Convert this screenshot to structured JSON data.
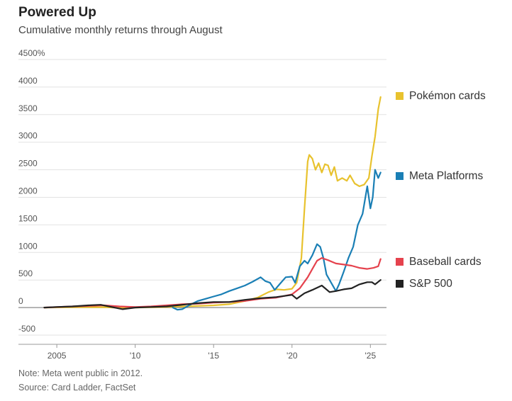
{
  "title": "Powered Up",
  "subtitle": "Cumulative monthly returns through August",
  "note": "Note: Meta went public in 2012.",
  "source": "Source: Card Ladder, FactSet",
  "chart_data": {
    "type": "line",
    "ylim": [
      -500,
      4500
    ],
    "xlim": [
      2004,
      2025.8
    ],
    "y_ticks": [
      {
        "value": 4500,
        "label": "4500%"
      },
      {
        "value": 4000,
        "label": "4000"
      },
      {
        "value": 3500,
        "label": "3500"
      },
      {
        "value": 3000,
        "label": "3000"
      },
      {
        "value": 2500,
        "label": "2500"
      },
      {
        "value": 2000,
        "label": "2000"
      },
      {
        "value": 1500,
        "label": "1500"
      },
      {
        "value": 1000,
        "label": "1000"
      },
      {
        "value": 500,
        "label": "500"
      },
      {
        "value": 0,
        "label": "0"
      },
      {
        "value": -500,
        "label": "-500"
      }
    ],
    "x_ticks": [
      {
        "value": 2005,
        "label": "2005"
      },
      {
        "value": 2010,
        "label": "'10"
      },
      {
        "value": 2015,
        "label": "'15"
      },
      {
        "value": 2020,
        "label": "'20"
      },
      {
        "value": 2025,
        "label": "'25"
      }
    ],
    "grid": true,
    "legend": "right",
    "series": [
      {
        "name": "Pokémon cards",
        "color": "#e8c22e",
        "points": [
          [
            2004.2,
            0
          ],
          [
            2006,
            5
          ],
          [
            2008,
            8
          ],
          [
            2009,
            -5
          ],
          [
            2010,
            0
          ],
          [
            2012,
            10
          ],
          [
            2013,
            20
          ],
          [
            2014,
            30
          ],
          [
            2015,
            40
          ],
          [
            2016,
            60
          ],
          [
            2017,
            120
          ],
          [
            2017.8,
            180
          ],
          [
            2018.5,
            280
          ],
          [
            2019,
            330
          ],
          [
            2019.5,
            320
          ],
          [
            2020,
            340
          ],
          [
            2020.3,
            450
          ],
          [
            2020.6,
            900
          ],
          [
            2020.8,
            1800
          ],
          [
            2021,
            2650
          ],
          [
            2021.1,
            2770
          ],
          [
            2021.3,
            2700
          ],
          [
            2021.5,
            2500
          ],
          [
            2021.7,
            2620
          ],
          [
            2021.9,
            2450
          ],
          [
            2022.1,
            2600
          ],
          [
            2022.3,
            2580
          ],
          [
            2022.5,
            2400
          ],
          [
            2022.7,
            2550
          ],
          [
            2022.9,
            2300
          ],
          [
            2023.2,
            2350
          ],
          [
            2023.5,
            2300
          ],
          [
            2023.7,
            2400
          ],
          [
            2024,
            2250
          ],
          [
            2024.3,
            2200
          ],
          [
            2024.6,
            2230
          ],
          [
            2024.9,
            2350
          ],
          [
            2025.1,
            2750
          ],
          [
            2025.3,
            3100
          ],
          [
            2025.5,
            3600
          ],
          [
            2025.65,
            3820
          ]
        ]
      },
      {
        "name": "Meta Platforms",
        "color": "#1a7fb5",
        "points": [
          [
            2012.4,
            0
          ],
          [
            2012.7,
            -40
          ],
          [
            2013,
            -30
          ],
          [
            2013.5,
            50
          ],
          [
            2014,
            120
          ],
          [
            2014.5,
            160
          ],
          [
            2015,
            200
          ],
          [
            2015.5,
            240
          ],
          [
            2016,
            300
          ],
          [
            2016.5,
            350
          ],
          [
            2017,
            400
          ],
          [
            2017.5,
            470
          ],
          [
            2018,
            550
          ],
          [
            2018.3,
            480
          ],
          [
            2018.6,
            450
          ],
          [
            2018.9,
            320
          ],
          [
            2019.2,
            420
          ],
          [
            2019.6,
            550
          ],
          [
            2020,
            560
          ],
          [
            2020.2,
            450
          ],
          [
            2020.5,
            750
          ],
          [
            2020.8,
            850
          ],
          [
            2021,
            800
          ],
          [
            2021.3,
            950
          ],
          [
            2021.6,
            1150
          ],
          [
            2021.8,
            1100
          ],
          [
            2022,
            900
          ],
          [
            2022.2,
            600
          ],
          [
            2022.5,
            450
          ],
          [
            2022.8,
            300
          ],
          [
            2023,
            420
          ],
          [
            2023.3,
            650
          ],
          [
            2023.6,
            900
          ],
          [
            2023.9,
            1100
          ],
          [
            2024.2,
            1500
          ],
          [
            2024.5,
            1700
          ],
          [
            2024.8,
            2200
          ],
          [
            2025,
            1800
          ],
          [
            2025.15,
            2000
          ],
          [
            2025.3,
            2500
          ],
          [
            2025.5,
            2350
          ],
          [
            2025.65,
            2450
          ]
        ]
      },
      {
        "name": "Baseball cards",
        "color": "#e5424d",
        "points": [
          [
            2004.2,
            0
          ],
          [
            2006,
            20
          ],
          [
            2007,
            30
          ],
          [
            2008,
            40
          ],
          [
            2009,
            20
          ],
          [
            2010,
            10
          ],
          [
            2011,
            20
          ],
          [
            2012,
            40
          ],
          [
            2013,
            60
          ],
          [
            2014,
            70
          ],
          [
            2015,
            90
          ],
          [
            2016,
            100
          ],
          [
            2017,
            120
          ],
          [
            2018,
            160
          ],
          [
            2019,
            180
          ],
          [
            2020,
            240
          ],
          [
            2020.5,
            350
          ],
          [
            2021,
            550
          ],
          [
            2021.3,
            700
          ],
          [
            2021.6,
            850
          ],
          [
            2021.9,
            900
          ],
          [
            2022.3,
            860
          ],
          [
            2022.8,
            800
          ],
          [
            2023.3,
            780
          ],
          [
            2023.8,
            760
          ],
          [
            2024.3,
            720
          ],
          [
            2024.8,
            700
          ],
          [
            2025.2,
            720
          ],
          [
            2025.5,
            750
          ],
          [
            2025.65,
            880
          ]
        ]
      },
      {
        "name": "S&P 500",
        "color": "#222222",
        "points": [
          [
            2004.2,
            0
          ],
          [
            2005,
            10
          ],
          [
            2006,
            20
          ],
          [
            2007,
            40
          ],
          [
            2007.8,
            50
          ],
          [
            2008.5,
            10
          ],
          [
            2009.2,
            -30
          ],
          [
            2010,
            0
          ],
          [
            2011,
            10
          ],
          [
            2012,
            20
          ],
          [
            2013,
            50
          ],
          [
            2014,
            80
          ],
          [
            2015,
            100
          ],
          [
            2016,
            100
          ],
          [
            2017,
            140
          ],
          [
            2018,
            170
          ],
          [
            2019,
            190
          ],
          [
            2020,
            230
          ],
          [
            2020.3,
            160
          ],
          [
            2020.8,
            260
          ],
          [
            2021.3,
            320
          ],
          [
            2021.9,
            400
          ],
          [
            2022.4,
            280
          ],
          [
            2022.8,
            300
          ],
          [
            2023.3,
            330
          ],
          [
            2023.8,
            350
          ],
          [
            2024.3,
            420
          ],
          [
            2024.8,
            460
          ],
          [
            2025.1,
            460
          ],
          [
            2025.3,
            420
          ],
          [
            2025.65,
            500
          ]
        ]
      }
    ]
  }
}
